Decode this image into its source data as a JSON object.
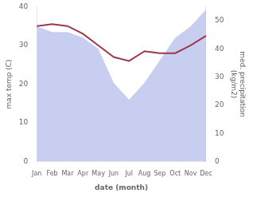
{
  "chart_data": {
    "type": "line",
    "categories": [
      "Jan",
      "Feb",
      "Mar",
      "Apr",
      "May",
      "Jun",
      "Jul",
      "Aug",
      "Sep",
      "Oct",
      "Nov",
      "Dec"
    ],
    "xlabel": "date (month)",
    "ylabel": "max temp (C)",
    "y2label": "med. precipitation\n(kg/m2)",
    "series": [
      {
        "type": "area",
        "axis": "y2",
        "color": "#aab4e8",
        "values": [
          48,
          46,
          46,
          44,
          40,
          28,
          22,
          28,
          36,
          44,
          48,
          54
        ]
      },
      {
        "type": "line",
        "color": "#9b3a4a",
        "values": [
          35,
          35.5,
          35,
          33,
          30,
          27,
          26,
          28.5,
          28,
          28,
          30,
          32.5
        ]
      }
    ],
    "ylim": [
      0,
      40
    ],
    "yticks": [
      0,
      10,
      20,
      30,
      40
    ],
    "y2lim": [
      0,
      55
    ],
    "y2ticks": [
      0,
      10,
      20,
      30,
      40,
      50
    ],
    "grid": false
  }
}
